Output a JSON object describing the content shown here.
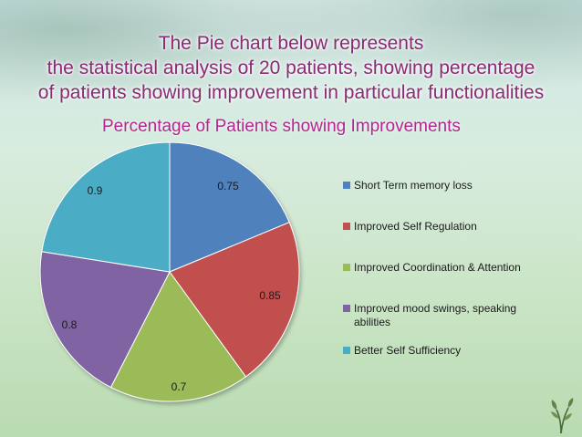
{
  "heading": {
    "lines": [
      "The Pie chart below represents",
      "the statistical analysis of 20 patients, showing percentage",
      "of patients showing improvement  in particular functionalities"
    ]
  },
  "icons": {
    "corner": "plant-sprout-icon"
  },
  "chart_data": {
    "type": "pie",
    "title": "Percentage of Patients  showing Improvements",
    "categories": [
      "Short Term memory loss",
      "Improved Self Regulation",
      "Improved Coordination & Attention",
      "Improved mood swings, speaking abilities",
      "Better Self Sufficiency"
    ],
    "values": [
      0.75,
      0.85,
      0.7,
      0.8,
      0.9
    ],
    "data_labels": [
      "0.75",
      "0.85",
      "0.7",
      "0.8",
      "0.9"
    ],
    "colors": [
      "#4f81bd",
      "#c0504d",
      "#9bbb59",
      "#8064a2",
      "#4bacc6"
    ],
    "legend_position": "right"
  }
}
